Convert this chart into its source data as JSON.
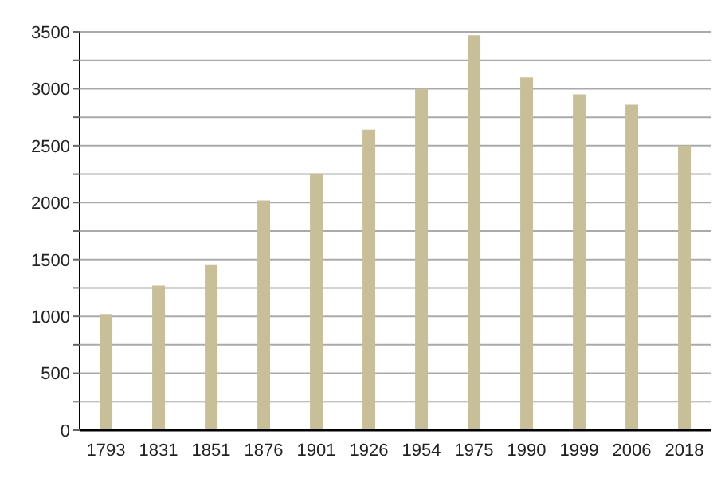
{
  "chart_data": {
    "type": "bar",
    "categories": [
      "1793",
      "1831",
      "1851",
      "1876",
      "1901",
      "1926",
      "1954",
      "1975",
      "1990",
      "1999",
      "2006",
      "2018"
    ],
    "values": [
      1020,
      1270,
      1450,
      2020,
      2250,
      2640,
      3000,
      3470,
      3100,
      2950,
      2860,
      2500
    ],
    "color": "#c8bf98",
    "ylim": [
      0,
      3500
    ],
    "yticks": [
      0,
      {
        "value": 250,
        "label": null
      },
      500,
      {
        "value": 750,
        "label": null
      },
      1000,
      {
        "value": 1250,
        "label": null
      },
      1500,
      {
        "value": 1750,
        "label": null
      },
      2000,
      {
        "value": 2250,
        "label": null
      },
      2500,
      {
        "value": 2750,
        "label": null
      },
      3000,
      {
        "value": 3250,
        "label": null
      },
      3500
    ],
    "grid": "y"
  }
}
